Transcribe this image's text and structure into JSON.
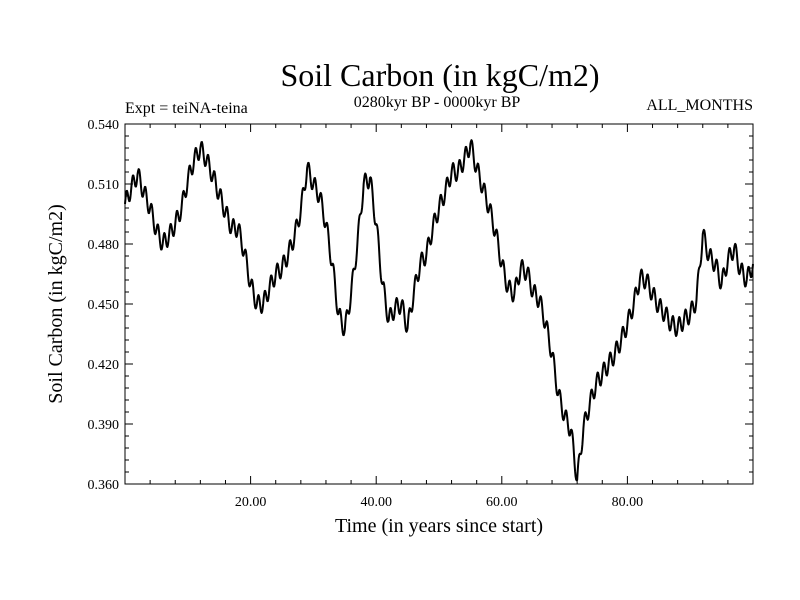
{
  "chart_data": {
    "type": "line",
    "title": "Soil Carbon (in kgC/m2)",
    "subtitle_left": "Expt = teiNA-teina",
    "subtitle_center": "0280kyr BP - 0000kyr BP",
    "subtitle_right": "ALL_MONTHS",
    "xlabel": "Time (in years since start)",
    "ylabel": "Soil Carbon (in kgC/m2)",
    "xlim": [
      0,
      100
    ],
    "ylim": [
      0.36,
      0.54
    ],
    "x_ticks": [
      20,
      40,
      60,
      80
    ],
    "x_tick_labels": [
      "20.00",
      "40.00",
      "60.00",
      "80.00"
    ],
    "y_ticks": [
      0.36,
      0.39,
      0.42,
      0.45,
      0.48,
      0.51,
      0.54
    ],
    "y_tick_labels": [
      "0.360",
      "0.390",
      "0.420",
      "0.450",
      "0.480",
      "0.510",
      "0.540"
    ],
    "grid": false,
    "line_color": "#000000",
    "series": [
      {
        "name": "Soil Carbon",
        "x": [
          0,
          1,
          2,
          3,
          4,
          5,
          6,
          7,
          8,
          9,
          10,
          11,
          12,
          13,
          14,
          15,
          16,
          17,
          18,
          19,
          20,
          21,
          22,
          23,
          24,
          25,
          26,
          27,
          28,
          29,
          30,
          31,
          32,
          33,
          34,
          35,
          36,
          37,
          38,
          39,
          40,
          41,
          42,
          43,
          44,
          45,
          46,
          47,
          48,
          49,
          50,
          51,
          52,
          53,
          54,
          55,
          56,
          57,
          58,
          59,
          60,
          61,
          62,
          63,
          64,
          65,
          66,
          67,
          68,
          69,
          70,
          71,
          72,
          73,
          74,
          75,
          76,
          77,
          78,
          79,
          80,
          81,
          82,
          83,
          84,
          85,
          86,
          87,
          88,
          89,
          90,
          91,
          92,
          93,
          94,
          95,
          96,
          97,
          98,
          99,
          100
        ],
        "values": [
          0.5,
          0.508,
          0.515,
          0.506,
          0.498,
          0.487,
          0.48,
          0.484,
          0.49,
          0.498,
          0.512,
          0.522,
          0.528,
          0.522,
          0.514,
          0.505,
          0.496,
          0.488,
          0.488,
          0.476,
          0.46,
          0.45,
          0.45,
          0.458,
          0.465,
          0.468,
          0.475,
          0.484,
          0.497,
          0.518,
          0.51,
          0.504,
          0.49,
          0.47,
          0.445,
          0.437,
          0.455,
          0.48,
          0.51,
          0.513,
          0.49,
          0.46,
          0.442,
          0.448,
          0.45,
          0.438,
          0.456,
          0.47,
          0.475,
          0.488,
          0.498,
          0.506,
          0.516,
          0.516,
          0.522,
          0.53,
          0.518,
          0.508,
          0.498,
          0.486,
          0.47,
          0.458,
          0.455,
          0.468,
          0.466,
          0.456,
          0.452,
          0.44,
          0.425,
          0.405,
          0.394,
          0.387,
          0.362,
          0.388,
          0.4,
          0.41,
          0.415,
          0.42,
          0.425,
          0.432,
          0.44,
          0.45,
          0.463,
          0.462,
          0.455,
          0.449,
          0.445,
          0.44,
          0.438,
          0.442,
          0.445,
          0.452,
          0.485,
          0.474,
          0.47,
          0.46,
          0.472,
          0.478,
          0.467,
          0.462,
          0.47
        ]
      }
    ]
  }
}
